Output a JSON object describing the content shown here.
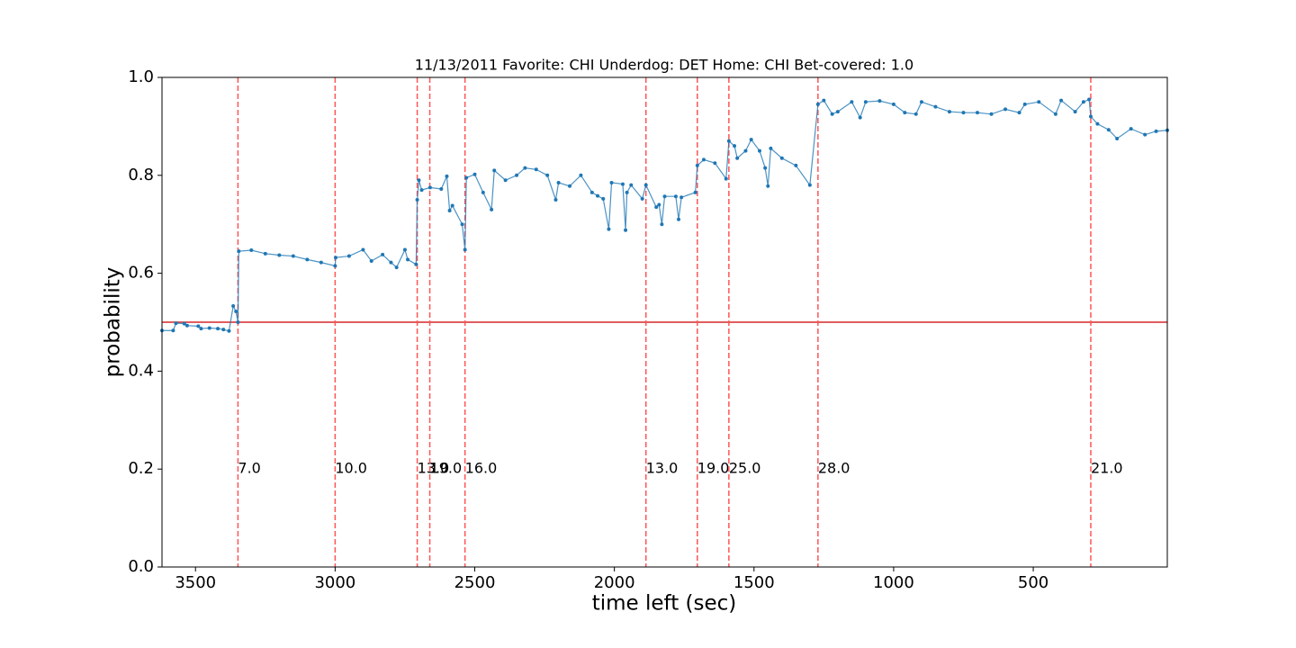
{
  "chart_data": {
    "type": "line",
    "title": "11/13/2011 Favorite: CHI Underdog: DET Home: CHI Bet-covered: 1.0",
    "xlabel": "time left (sec)",
    "ylabel": "probability",
    "xlim": [
      3620,
      20
    ],
    "ylim": [
      0,
      1
    ],
    "xticks": [
      3500,
      3000,
      2500,
      2000,
      1500,
      1000,
      500
    ],
    "yticks": [
      {
        "value": 0,
        "label": "0.0"
      },
      {
        "value": 0.2,
        "label": "0.2"
      },
      {
        "value": 0.4,
        "label": "0.4"
      },
      {
        "value": 0.6,
        "label": "0.6"
      },
      {
        "value": 0.8,
        "label": "0.8"
      },
      {
        "value": 1,
        "label": "1.0"
      }
    ],
    "x": [
      3620,
      3580,
      3570,
      3540,
      3530,
      3490,
      3480,
      3450,
      3420,
      3400,
      3380,
      3365,
      3355,
      3348,
      3345,
      3300,
      3250,
      3200,
      3150,
      3100,
      3050,
      3000,
      2998,
      2950,
      2900,
      2870,
      2830,
      2800,
      2780,
      2750,
      2740,
      2710,
      2706,
      2700,
      2690,
      2660,
      2620,
      2600,
      2590,
      2580,
      2545,
      2535,
      2530,
      2500,
      2470,
      2440,
      2430,
      2390,
      2350,
      2320,
      2280,
      2240,
      2210,
      2200,
      2160,
      2120,
      2080,
      2060,
      2040,
      2020,
      2010,
      1970,
      1960,
      1955,
      1940,
      1900,
      1887,
      1850,
      1840,
      1830,
      1820,
      1780,
      1770,
      1760,
      1710,
      1703,
      1680,
      1640,
      1600,
      1590,
      1570,
      1560,
      1530,
      1510,
      1480,
      1460,
      1450,
      1440,
      1400,
      1350,
      1300,
      1271,
      1250,
      1220,
      1200,
      1150,
      1120,
      1100,
      1050,
      1000,
      960,
      920,
      900,
      850,
      800,
      750,
      700,
      650,
      600,
      550,
      530,
      480,
      420,
      400,
      350,
      320,
      300,
      294,
      270,
      230,
      200,
      150,
      100,
      60,
      20
    ],
    "series": [
      {
        "name": "probability",
        "color": "#1f77b4",
        "values": [
          0.483,
          0.483,
          0.498,
          0.497,
          0.493,
          0.492,
          0.487,
          0.488,
          0.487,
          0.485,
          0.482,
          0.533,
          0.522,
          0.5,
          0.645,
          0.647,
          0.64,
          0.637,
          0.635,
          0.628,
          0.622,
          0.615,
          0.632,
          0.635,
          0.648,
          0.625,
          0.638,
          0.622,
          0.612,
          0.648,
          0.628,
          0.618,
          0.75,
          0.79,
          0.77,
          0.775,
          0.772,
          0.798,
          0.728,
          0.738,
          0.7,
          0.648,
          0.795,
          0.802,
          0.765,
          0.73,
          0.81,
          0.79,
          0.8,
          0.815,
          0.812,
          0.8,
          0.75,
          0.785,
          0.778,
          0.8,
          0.765,
          0.758,
          0.752,
          0.69,
          0.785,
          0.782,
          0.688,
          0.765,
          0.78,
          0.752,
          0.78,
          0.735,
          0.74,
          0.7,
          0.757,
          0.757,
          0.71,
          0.755,
          0.765,
          0.82,
          0.832,
          0.825,
          0.793,
          0.87,
          0.86,
          0.835,
          0.85,
          0.873,
          0.85,
          0.815,
          0.778,
          0.855,
          0.835,
          0.82,
          0.78,
          0.945,
          0.953,
          0.925,
          0.93,
          0.95,
          0.918,
          0.95,
          0.952,
          0.945,
          0.928,
          0.925,
          0.95,
          0.94,
          0.93,
          0.928,
          0.928,
          0.925,
          0.935,
          0.928,
          0.945,
          0.95,
          0.925,
          0.953,
          0.93,
          0.95,
          0.955,
          0.92,
          0.905,
          0.893,
          0.875,
          0.895,
          0.883,
          0.89,
          0.892
        ]
      }
    ],
    "hline": 0.5,
    "hline_color": "#d62728",
    "vline_color": "#ff5555",
    "vlines": [
      3348,
      3000,
      2706,
      2661,
      2535,
      1887,
      1703,
      1590,
      1271,
      294
    ],
    "vline_labels": [
      "7.0",
      "10.0",
      "13.0",
      "19.0",
      "16.0",
      "13.0",
      "19.0",
      "25.0",
      "28.0",
      "21.0"
    ],
    "vline_label_y": 0.2
  }
}
